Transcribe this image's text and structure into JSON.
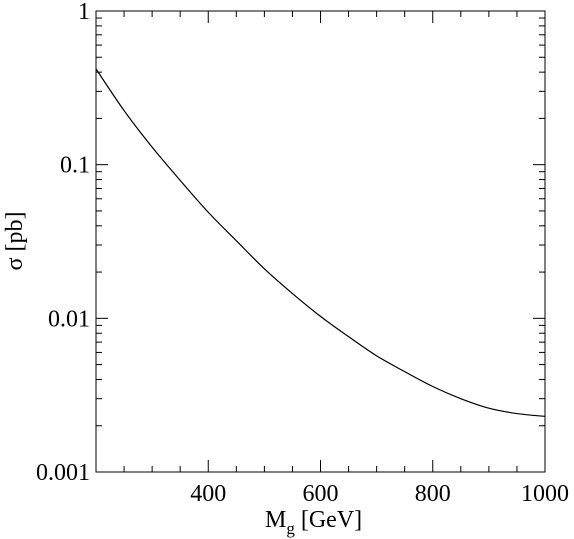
{
  "chart_data": {
    "type": "line",
    "xlabel": "M",
    "xlabel_sub": "g",
    "xlabel_rest": " [GeV]",
    "ylabel": "σ [pb]",
    "xlim": [
      200,
      1000
    ],
    "ylim": [
      0.001,
      1
    ],
    "yscale": "log",
    "grid": false,
    "x_ticks": [
      400,
      600,
      800,
      1000
    ],
    "x_tick_labels": [
      "400",
      "600",
      "800",
      "1000"
    ],
    "y_ticks": [
      0.001,
      0.01,
      0.1,
      1
    ],
    "y_tick_labels": [
      "0.001",
      "0.01",
      "0.1",
      "1"
    ],
    "series": [
      {
        "x": [
          200,
          250,
          300,
          350,
          400,
          450,
          500,
          550,
          600,
          650,
          700,
          750,
          800,
          850,
          900,
          950,
          1000
        ],
        "y": [
          0.42,
          0.225,
          0.13,
          0.079,
          0.049,
          0.032,
          0.021,
          0.0145,
          0.0103,
          0.0076,
          0.0057,
          0.0045,
          0.0036,
          0.003,
          0.0026,
          0.0024,
          0.0023
        ]
      }
    ]
  }
}
